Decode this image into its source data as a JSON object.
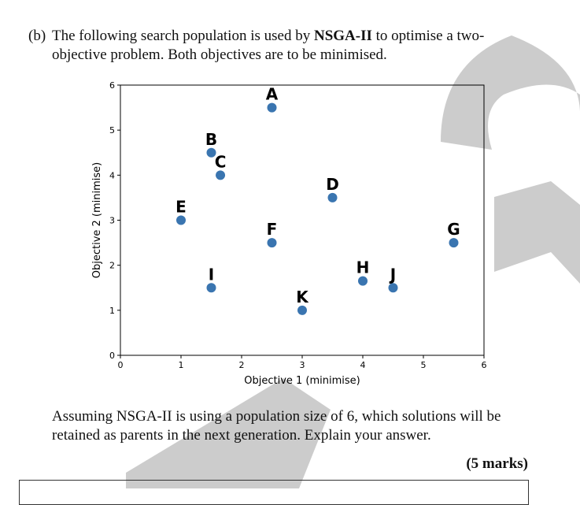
{
  "question": {
    "label": "(b)",
    "text_before": "The following search population is used by ",
    "algorithm": "NSGA-II",
    "text_after": " to optimise a two-objective problem. Both objectives are to be minimised."
  },
  "chart_data": {
    "type": "scatter",
    "xlabel": "Objective 1 (minimise)",
    "ylabel": "Objective 2 (minimise)",
    "xlim": [
      0,
      6
    ],
    "ylim": [
      0,
      6
    ],
    "xticks": [
      0,
      1,
      2,
      3,
      4,
      5,
      6
    ],
    "yticks": [
      0,
      1,
      2,
      3,
      4,
      5,
      6
    ],
    "grid": false,
    "point_color": "#3a75b0",
    "points": [
      {
        "label": "A",
        "x": 2.5,
        "y": 5.5
      },
      {
        "label": "B",
        "x": 1.5,
        "y": 4.5
      },
      {
        "label": "C",
        "x": 1.65,
        "y": 4.0
      },
      {
        "label": "D",
        "x": 3.5,
        "y": 3.5
      },
      {
        "label": "E",
        "x": 1.0,
        "y": 3.0
      },
      {
        "label": "F",
        "x": 2.5,
        "y": 2.5
      },
      {
        "label": "G",
        "x": 5.5,
        "y": 2.5
      },
      {
        "label": "H",
        "x": 4.0,
        "y": 1.65
      },
      {
        "label": "I",
        "x": 1.5,
        "y": 1.5
      },
      {
        "label": "J",
        "x": 4.5,
        "y": 1.5
      },
      {
        "label": "K",
        "x": 3.0,
        "y": 1.0
      }
    ]
  },
  "prompt": "Assuming NSGA-II is using a population size of 6, which solutions will be retained as parents in the next generation. Explain your answer.",
  "marks": "(5 marks)",
  "watermark_color": "#cccccc"
}
